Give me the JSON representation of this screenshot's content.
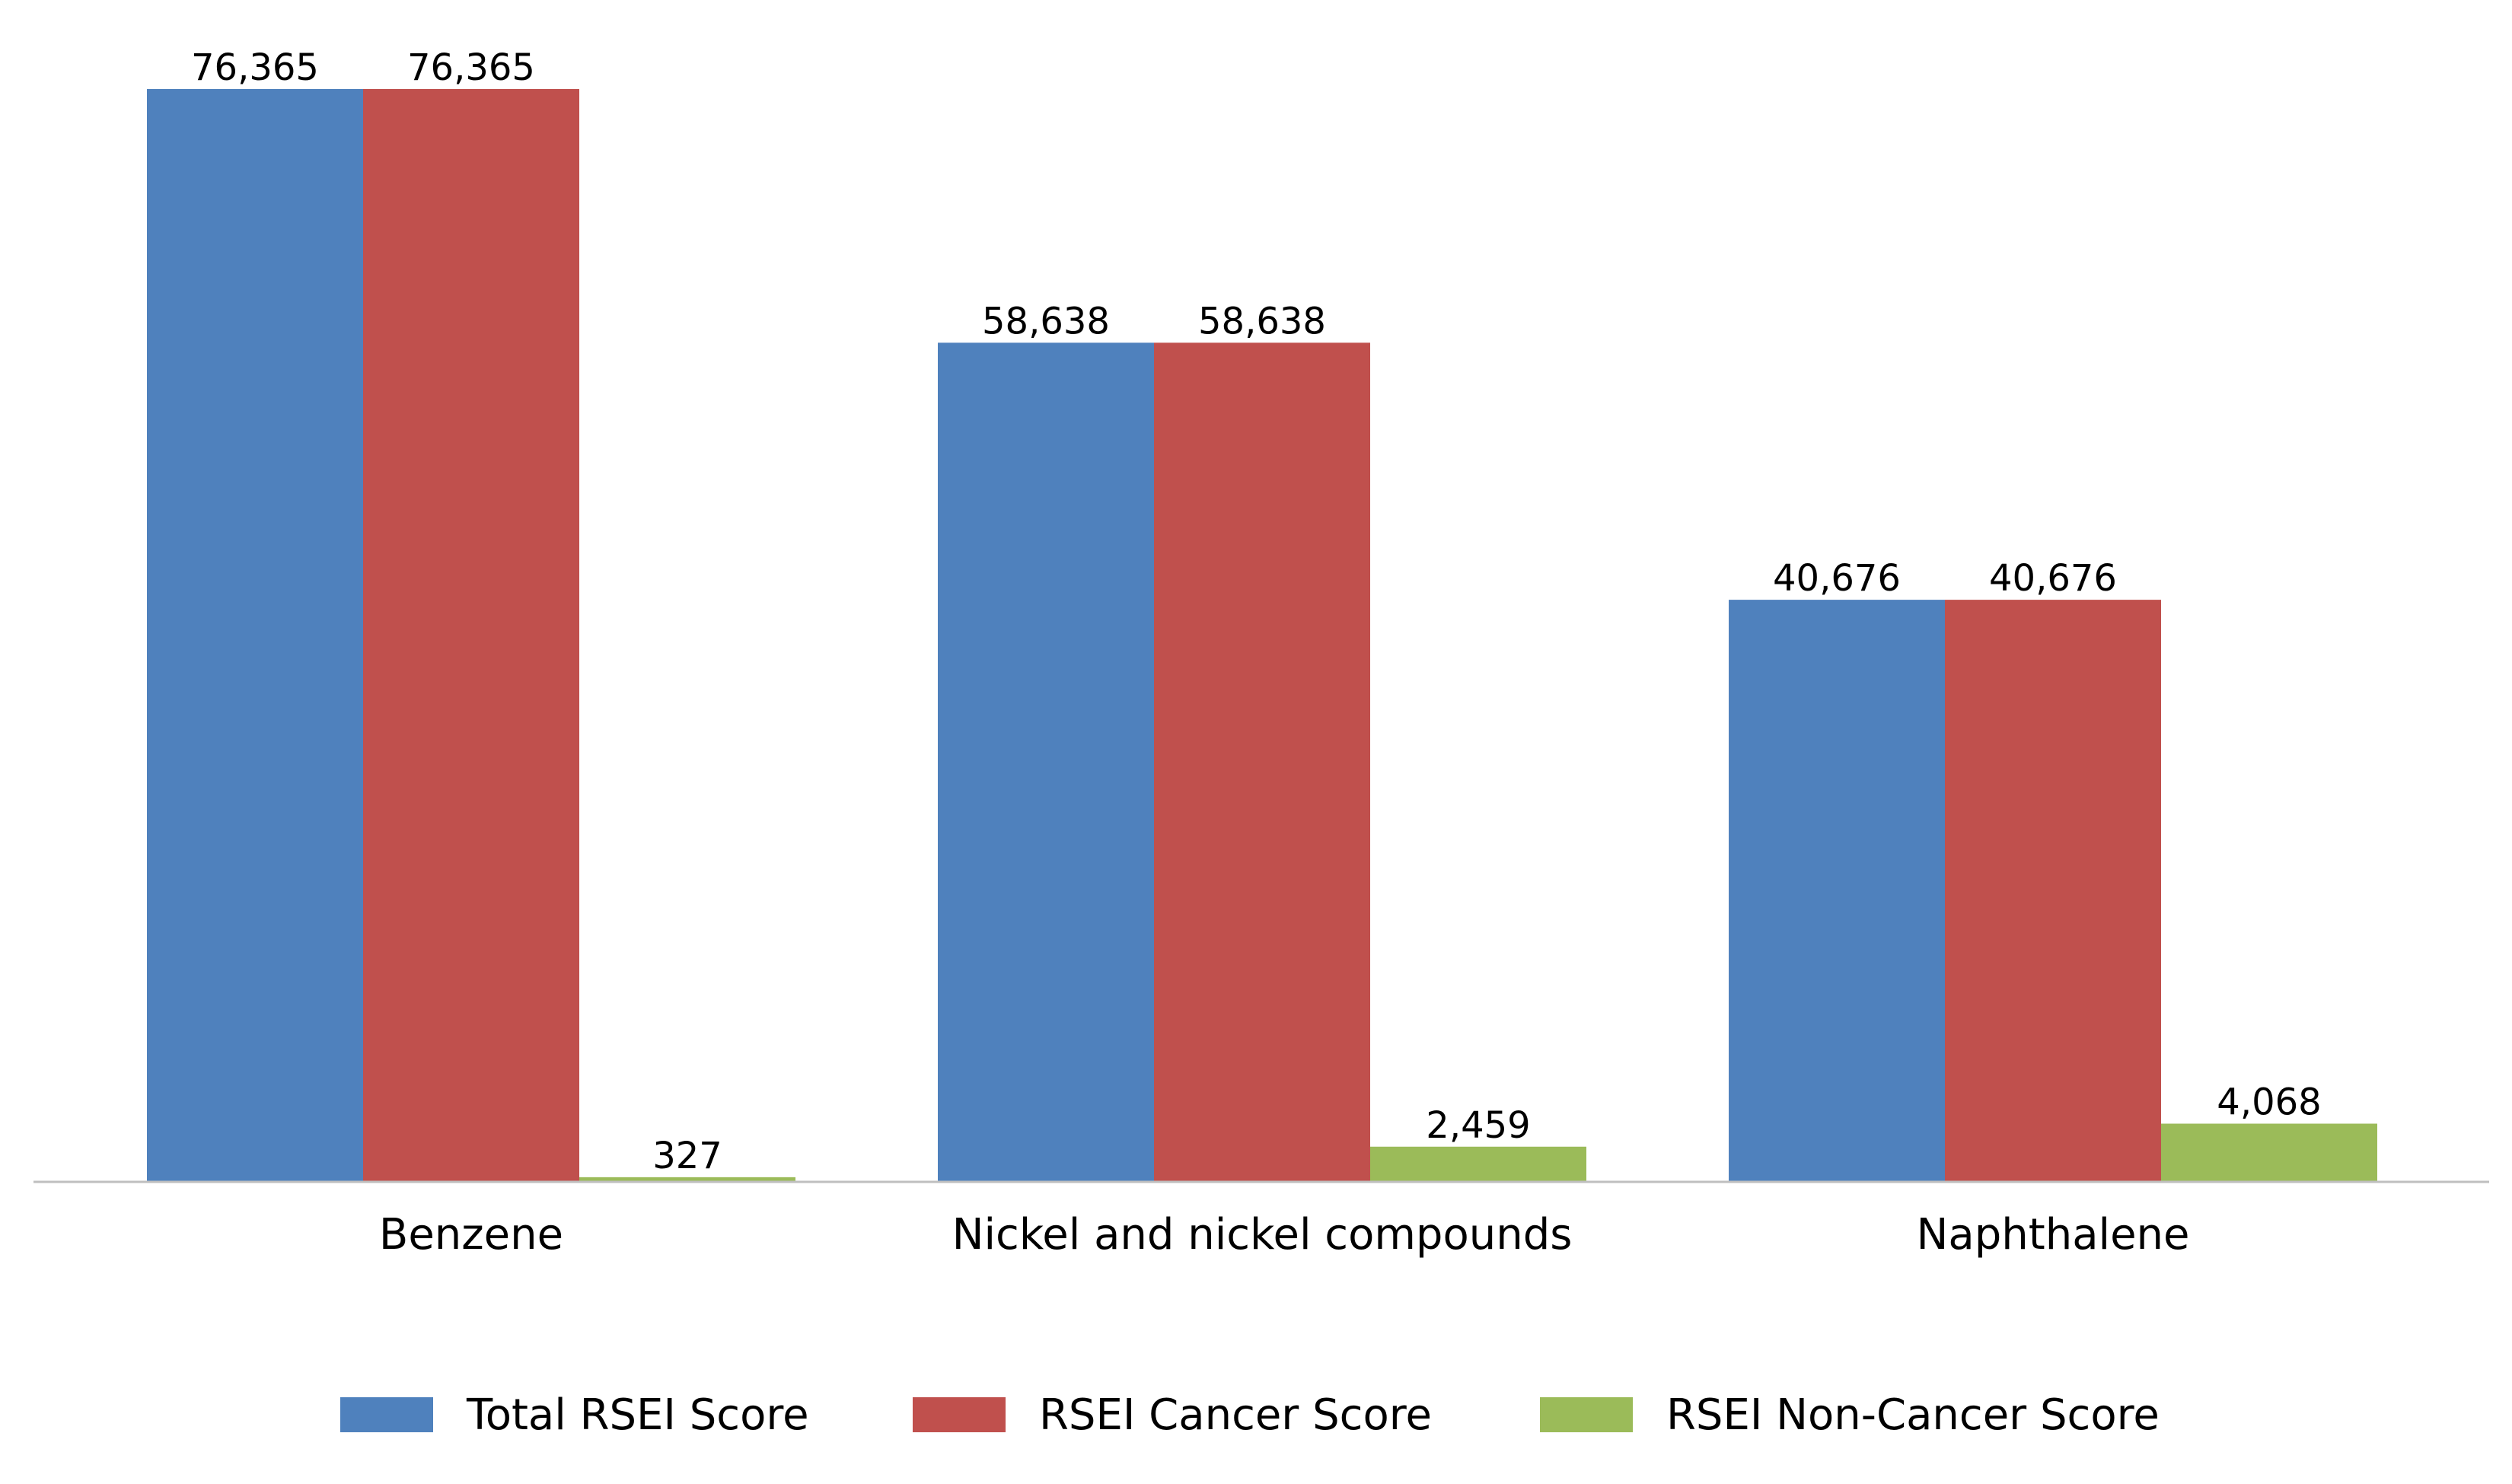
{
  "chart_data": {
    "type": "bar",
    "categories": [
      "Benzene",
      "Nickel and nickel compounds",
      "Naphthalene"
    ],
    "series": [
      {
        "name": "Total RSEI Score",
        "values": [
          76365,
          58638,
          40676
        ],
        "labels": [
          "76,365",
          "58,638",
          "40,676"
        ],
        "color": "#4f81bd"
      },
      {
        "name": "RSEI Cancer Score",
        "values": [
          76365,
          58638,
          40676
        ],
        "labels": [
          "76,365",
          "58,638",
          "40,676"
        ],
        "color": "#c0504d"
      },
      {
        "name": "RSEI Non-Cancer Score",
        "values": [
          327,
          2459,
          4068
        ],
        "labels": [
          "327",
          "2,459",
          "4,068"
        ],
        "color": "#9bbb59"
      }
    ],
    "title": "",
    "xlabel": "",
    "ylabel": "",
    "ylim": [
      0,
      76365
    ],
    "grid": false,
    "legend": "bottom",
    "axis_color": "#bfbfbf"
  }
}
